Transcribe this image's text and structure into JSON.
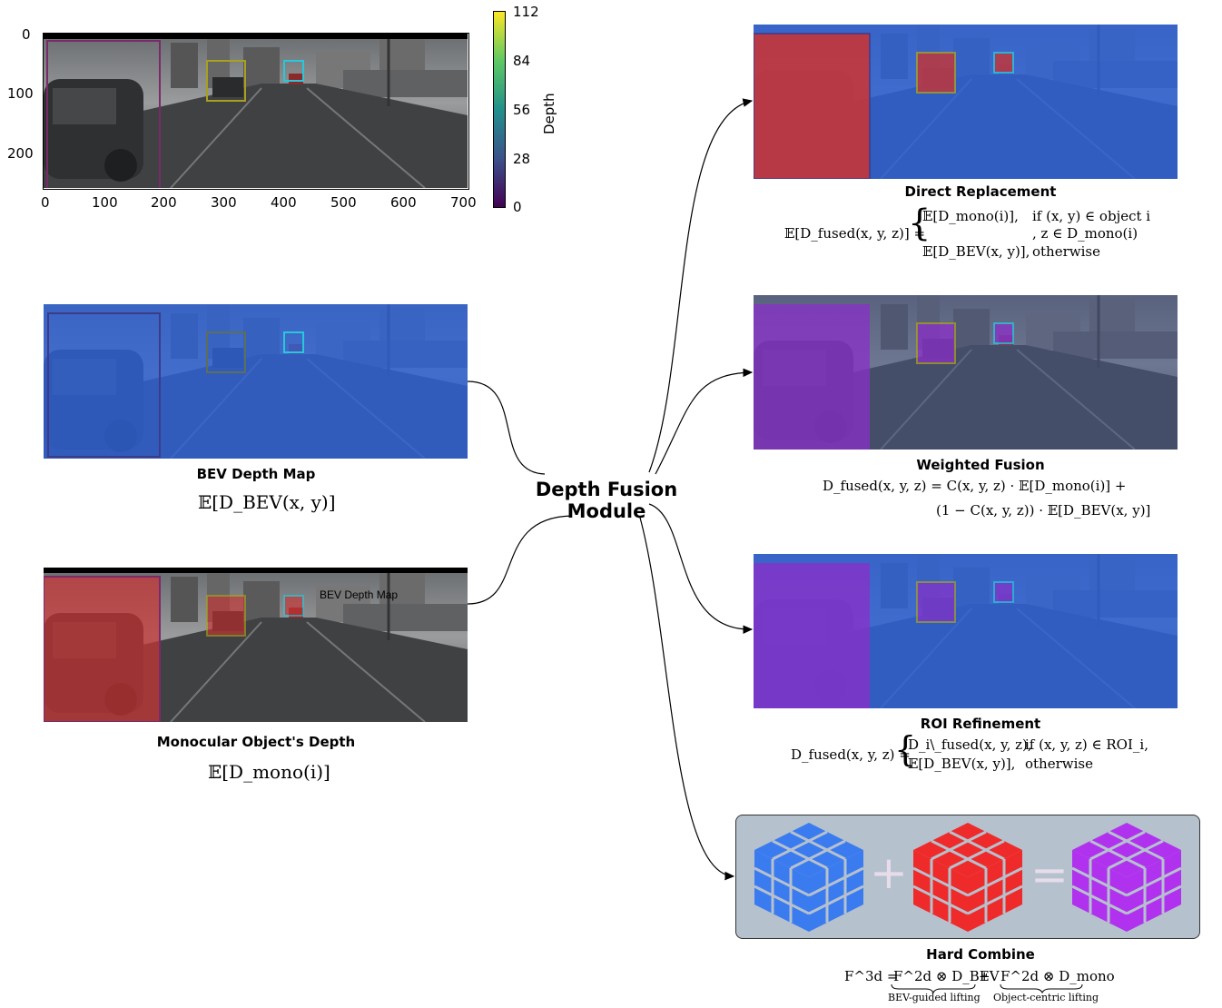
{
  "top_plot": {
    "y_ticks": [
      "0",
      "100",
      "200"
    ],
    "x_ticks": [
      "0",
      "100",
      "200",
      "300",
      "400",
      "500",
      "600",
      "700"
    ],
    "colorbar_ticks": [
      "112",
      "84",
      "56",
      "28",
      "0"
    ],
    "colorbar_label": "Depth"
  },
  "left_panels": {
    "bev": {
      "caption": "BEV Depth Map",
      "formula": "𝔼[D_BEV(x, y)]"
    },
    "mono": {
      "caption": "Monocular Object's Depth",
      "formula": "𝔼[D_mono(i)]",
      "overlay_label": "BEV Depth Map"
    }
  },
  "center": {
    "title_line1": "Depth Fusion",
    "title_line2": "Module"
  },
  "right_panels": {
    "direct": {
      "caption": "Direct Replacement",
      "lhs": "𝔼[D_fused(x, y, z)] =",
      "case1": "𝔼[D_mono(i)],",
      "case1_cond": "if (x, y) ∈ object i",
      "case1_cond2": ", z ∈ D_mono(i)",
      "case2": "𝔼[D_BEV(x, y)],",
      "case2_cond": "otherwise"
    },
    "weighted": {
      "caption": "Weighted Fusion",
      "line1": "D_fused(x, y, z) = C(x, y, z) · 𝔼[D_mono(i)] +",
      "line2": "(1 − C(x, y, z)) · 𝔼[D_BEV(x, y)]"
    },
    "roi": {
      "caption": "ROI Refinement",
      "lhs": "D_fused(x, y, z) =",
      "case1": "D_i\\_fused(x, y, z),",
      "case1_cond": "if (x, y, z) ∈ ROI_i,",
      "case2": "𝔼[D_BEV(x, y)],",
      "case2_cond": "otherwise"
    },
    "hard": {
      "caption": "Hard Combine",
      "formula_lhs": "F^3d =",
      "term1": "F^2d ⊗ D_BEV",
      "plus": "+",
      "term2": "F^2d ⊗ D_mono",
      "brace1": "BEV-guided lifting",
      "brace2": "Object-centric lifting",
      "plus_symbol": "+",
      "equals_symbol": "="
    }
  },
  "colors": {
    "bev_blue": "#2f63d6",
    "mono_red": "#c93434",
    "fused_purple": "#8a2fc9",
    "cube_blue": "#3a7bef",
    "cube_red": "#ef2a2a",
    "cube_purple": "#b032ee",
    "panel_bg": "#b6c1ce"
  }
}
